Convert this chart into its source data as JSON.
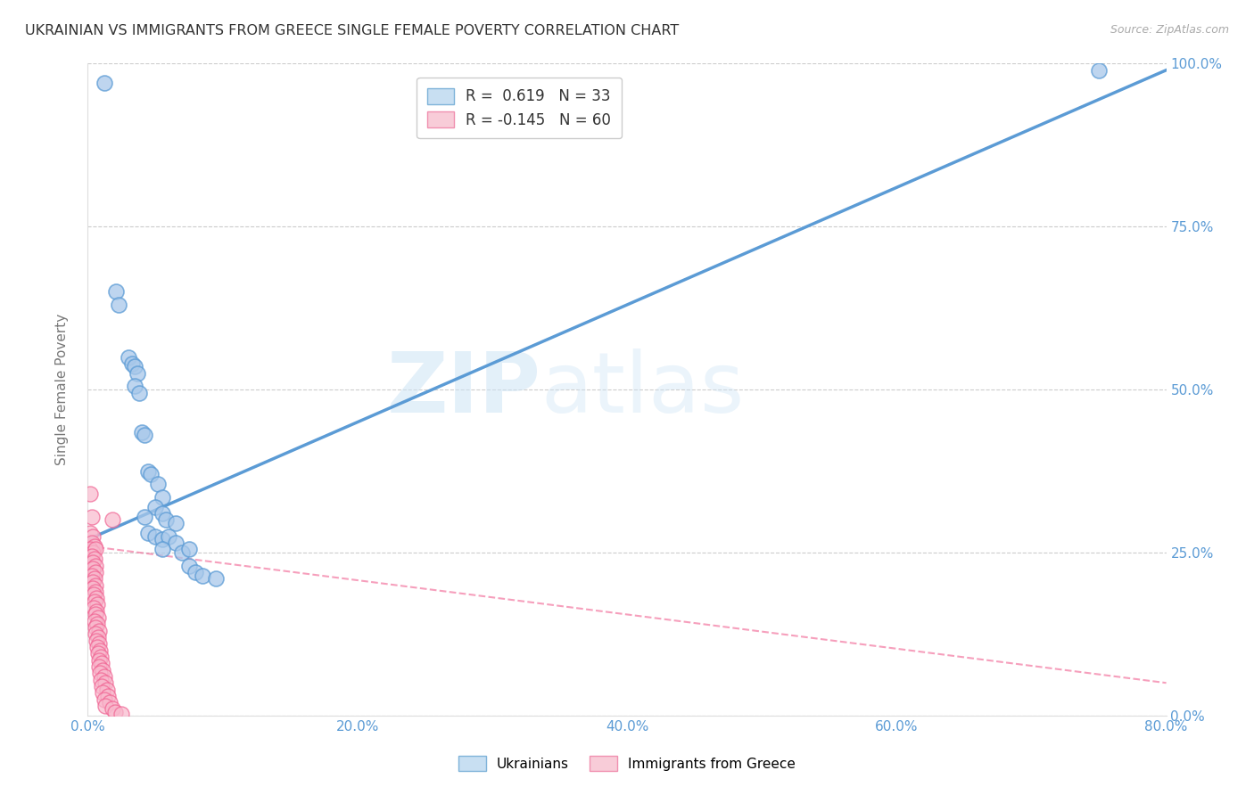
{
  "title": "UKRAINIAN VS IMMIGRANTS FROM GREECE SINGLE FEMALE POVERTY CORRELATION CHART",
  "source": "Source: ZipAtlas.com",
  "xlabel_ticks": [
    "0.0%",
    "20.0%",
    "40.0%",
    "60.0%",
    "80.0%"
  ],
  "xlabel_vals": [
    0,
    20,
    40,
    60,
    80
  ],
  "ylabel_ticks": [
    "0.0%",
    "25.0%",
    "50.0%",
    "75.0%",
    "100.0%"
  ],
  "ylabel_vals": [
    0,
    25,
    50,
    75,
    100
  ],
  "ylabel_label": "Single Female Poverty",
  "xlim": [
    0,
    80
  ],
  "ylim": [
    0,
    100
  ],
  "watermark_zip": "ZIP",
  "watermark_atlas": "atlas",
  "legend_line1": "R =  0.619   N = 33",
  "legend_line2": "R = -0.145   N = 60",
  "blue_color": "#5b9bd5",
  "pink_color": "#f06090",
  "blue_fill": "#a8c8ea",
  "pink_fill": "#f8b8cc",
  "blue_scatter": [
    [
      1.2,
      97.0
    ],
    [
      2.1,
      65.0
    ],
    [
      2.3,
      63.0
    ],
    [
      3.0,
      55.0
    ],
    [
      3.3,
      54.0
    ],
    [
      3.5,
      53.5
    ],
    [
      3.7,
      52.5
    ],
    [
      3.5,
      50.5
    ],
    [
      3.8,
      49.5
    ],
    [
      4.0,
      43.5
    ],
    [
      4.2,
      43.0
    ],
    [
      4.5,
      37.5
    ],
    [
      4.7,
      37.0
    ],
    [
      5.2,
      35.5
    ],
    [
      5.5,
      33.5
    ],
    [
      5.0,
      32.0
    ],
    [
      5.5,
      31.0
    ],
    [
      4.2,
      30.5
    ],
    [
      5.8,
      30.0
    ],
    [
      6.5,
      29.5
    ],
    [
      4.5,
      28.0
    ],
    [
      5.0,
      27.5
    ],
    [
      5.5,
      27.0
    ],
    [
      6.0,
      27.5
    ],
    [
      6.5,
      26.5
    ],
    [
      5.5,
      25.5
    ],
    [
      7.0,
      25.0
    ],
    [
      7.5,
      25.5
    ],
    [
      7.5,
      23.0
    ],
    [
      8.0,
      22.0
    ],
    [
      8.5,
      21.5
    ],
    [
      9.5,
      21.0
    ],
    [
      75.0,
      99.0
    ]
  ],
  "pink_scatter": [
    [
      0.15,
      34.0
    ],
    [
      0.3,
      30.5
    ],
    [
      0.2,
      28.0
    ],
    [
      0.4,
      27.5
    ],
    [
      0.3,
      26.5
    ],
    [
      0.5,
      26.0
    ],
    [
      0.2,
      25.5
    ],
    [
      0.4,
      25.0
    ],
    [
      0.6,
      25.5
    ],
    [
      0.3,
      24.5
    ],
    [
      0.5,
      24.0
    ],
    [
      0.35,
      23.5
    ],
    [
      0.55,
      23.0
    ],
    [
      0.4,
      22.5
    ],
    [
      0.6,
      22.0
    ],
    [
      0.3,
      21.5
    ],
    [
      0.5,
      21.0
    ],
    [
      0.4,
      20.5
    ],
    [
      0.6,
      20.0
    ],
    [
      0.35,
      19.5
    ],
    [
      0.55,
      19.0
    ],
    [
      0.45,
      18.5
    ],
    [
      0.65,
      18.0
    ],
    [
      0.5,
      17.5
    ],
    [
      0.7,
      17.0
    ],
    [
      0.45,
      16.5
    ],
    [
      0.65,
      16.0
    ],
    [
      0.55,
      15.5
    ],
    [
      0.75,
      15.0
    ],
    [
      0.5,
      14.5
    ],
    [
      0.7,
      14.0
    ],
    [
      0.6,
      13.5
    ],
    [
      0.8,
      13.0
    ],
    [
      0.55,
      12.5
    ],
    [
      0.75,
      12.0
    ],
    [
      0.65,
      11.5
    ],
    [
      0.85,
      11.0
    ],
    [
      0.7,
      10.5
    ],
    [
      0.9,
      10.0
    ],
    [
      0.75,
      9.5
    ],
    [
      0.95,
      9.0
    ],
    [
      0.8,
      8.5
    ],
    [
      1.0,
      8.0
    ],
    [
      0.85,
      7.5
    ],
    [
      1.1,
      7.0
    ],
    [
      0.9,
      6.5
    ],
    [
      1.2,
      6.0
    ],
    [
      0.95,
      5.5
    ],
    [
      1.3,
      5.0
    ],
    [
      1.0,
      4.5
    ],
    [
      1.4,
      4.0
    ],
    [
      1.1,
      3.5
    ],
    [
      1.5,
      3.0
    ],
    [
      1.2,
      2.5
    ],
    [
      1.6,
      2.0
    ],
    [
      1.3,
      1.5
    ],
    [
      1.8,
      1.0
    ],
    [
      2.0,
      0.5
    ],
    [
      2.5,
      0.2
    ],
    [
      1.8,
      30.0
    ]
  ],
  "blue_line_x": [
    0,
    80
  ],
  "blue_line_y": [
    27.0,
    99.0
  ],
  "pink_line_x": [
    0,
    80
  ],
  "pink_line_y": [
    26.0,
    5.0
  ],
  "grid_color": "#cccccc",
  "background_color": "#ffffff",
  "title_color": "#333333",
  "axis_tick_color": "#5b9bd5",
  "ylabel_color": "#777777",
  "source_color": "#aaaaaa"
}
